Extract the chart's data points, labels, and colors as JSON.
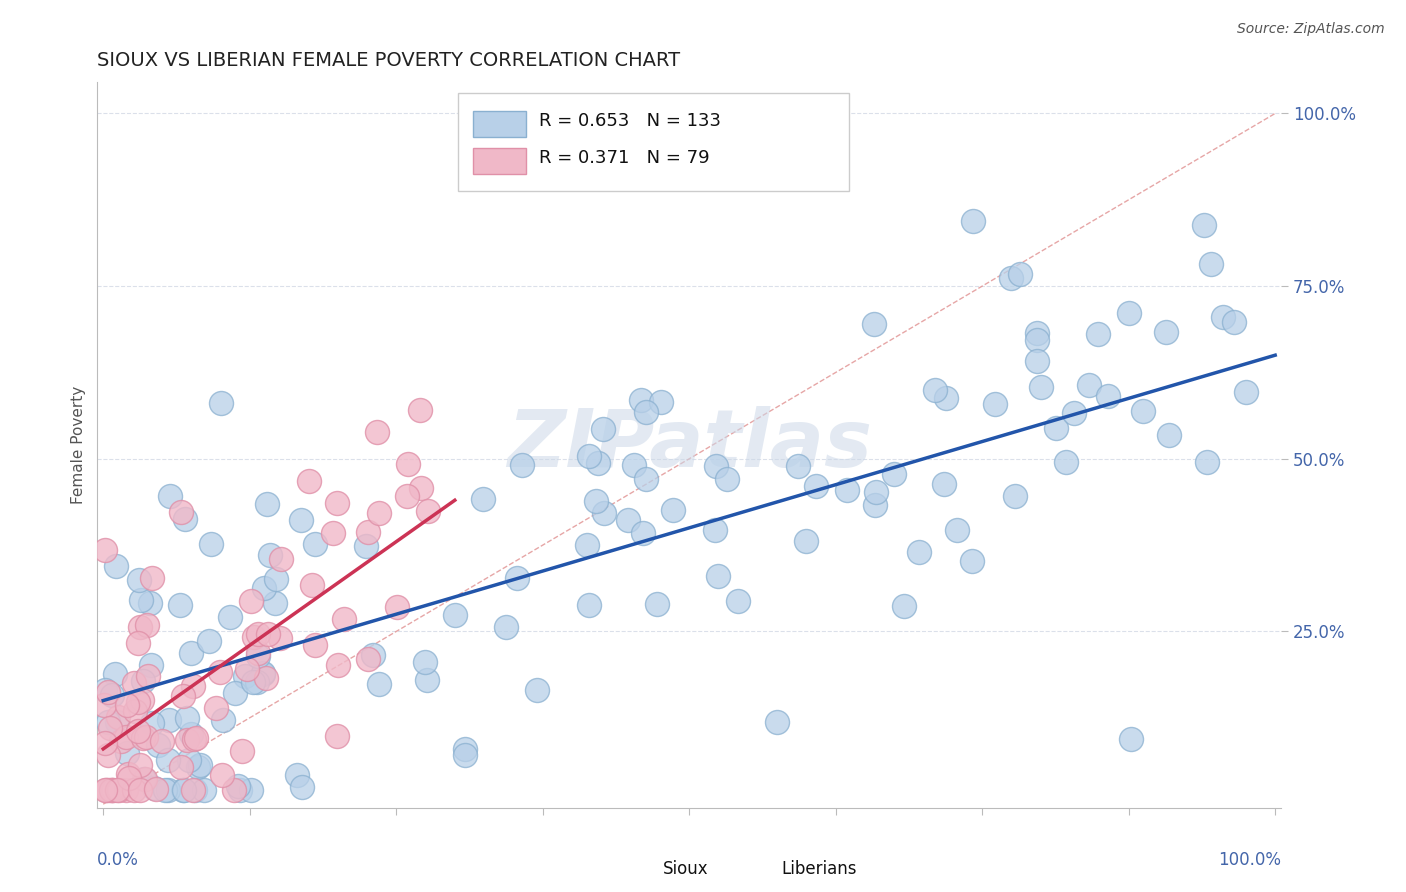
{
  "title": "SIOUX VS LIBERIAN FEMALE POVERTY CORRELATION CHART",
  "source": "Source: ZipAtlas.com",
  "ylabel": "Female Poverty",
  "legend_sioux": "Sioux",
  "legend_liberian": "Liberians",
  "sioux_R": 0.653,
  "sioux_N": 133,
  "liberian_R": 0.371,
  "liberian_N": 79,
  "sioux_color": "#b8d0e8",
  "sioux_edge_color": "#8ab0d0",
  "liberian_color": "#f0b8c8",
  "liberian_edge_color": "#e090a8",
  "sioux_line_color": "#2255aa",
  "liberian_line_color": "#cc3355",
  "ref_line_color": "#e09090",
  "grid_color": "#d8dde8",
  "title_color": "#222222",
  "axis_label_color": "#4466aa",
  "background_color": "#ffffff",
  "watermark_color": "#ccd8e8",
  "sioux_line_intercept": 0.15,
  "sioux_line_slope": 0.5,
  "liberian_line_intercept": 0.08,
  "liberian_line_slope": 1.2
}
